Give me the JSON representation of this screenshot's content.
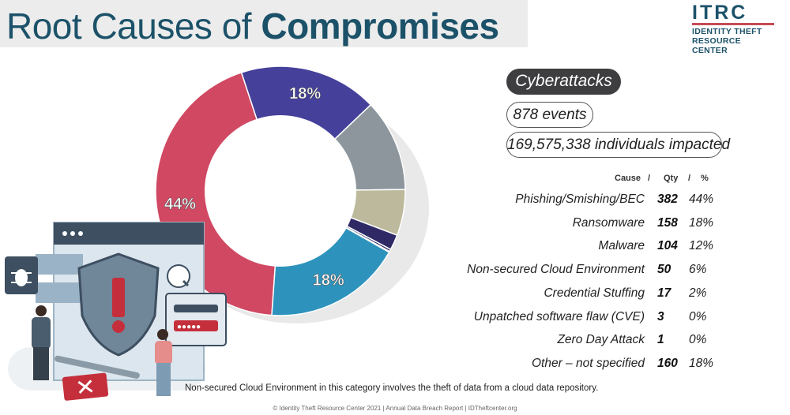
{
  "title": {
    "light": "Root Causes of ",
    "bold": "Compromises"
  },
  "logo": {
    "mark": "ITRC",
    "line1": "IDENTITY THEFT",
    "line2": "RESOURCE CENTER"
  },
  "category": {
    "name": "Cyberattacks",
    "events": "878 events",
    "impacted": "169,575,338 individuals impacted"
  },
  "table": {
    "header": {
      "cause": "Cause",
      "sep1": "/",
      "qty": "Qty",
      "sep2": "/",
      "pct": "%"
    }
  },
  "chart_data": {
    "type": "pie",
    "style": "donut",
    "columns": [
      "Cause",
      "Qty",
      "%"
    ],
    "slices": [
      {
        "label": "Phishing/Smishing/BEC",
        "qty": "382",
        "pct": "44%",
        "value": 44,
        "color": "#d04862",
        "label_on_chart": "44%"
      },
      {
        "label": "Ransomware",
        "qty": "158",
        "pct": "18%",
        "value": 18,
        "color": "#45409a",
        "label_on_chart": "18%"
      },
      {
        "label": "Malware",
        "qty": "104",
        "pct": "12%",
        "value": 12,
        "color": "#8d969d",
        "label_on_chart": ""
      },
      {
        "label": "Non-secured Cloud Environment",
        "qty": "50",
        "pct": "6%",
        "value": 6,
        "color": "#bdb99c",
        "label_on_chart": ""
      },
      {
        "label": "Credential Stuffing",
        "qty": "17",
        "pct": "2%",
        "value": 2,
        "color": "#2f2a66",
        "label_on_chart": ""
      },
      {
        "label": "Unpatched software flaw (CVE)",
        "qty": "3",
        "pct": "0%",
        "value": 0.3,
        "color": "#2f2a66",
        "label_on_chart": ""
      },
      {
        "label": "Zero Day Attack",
        "qty": "1",
        "pct": "0%",
        "value": 0.1,
        "color": "#2f2a66",
        "label_on_chart": ""
      },
      {
        "label": "Other – not specified",
        "qty": "160",
        "pct": "18%",
        "value": 18,
        "color": "#2e93bc",
        "label_on_chart": "18%"
      }
    ]
  },
  "footnote": "Non-secured Cloud Environment in this category involves the theft of data from a cloud data repository.",
  "copyright": "© Identity Theft Resource Center 2021  |  Annual Data Breach Report  |  IDTheftcenter.org"
}
